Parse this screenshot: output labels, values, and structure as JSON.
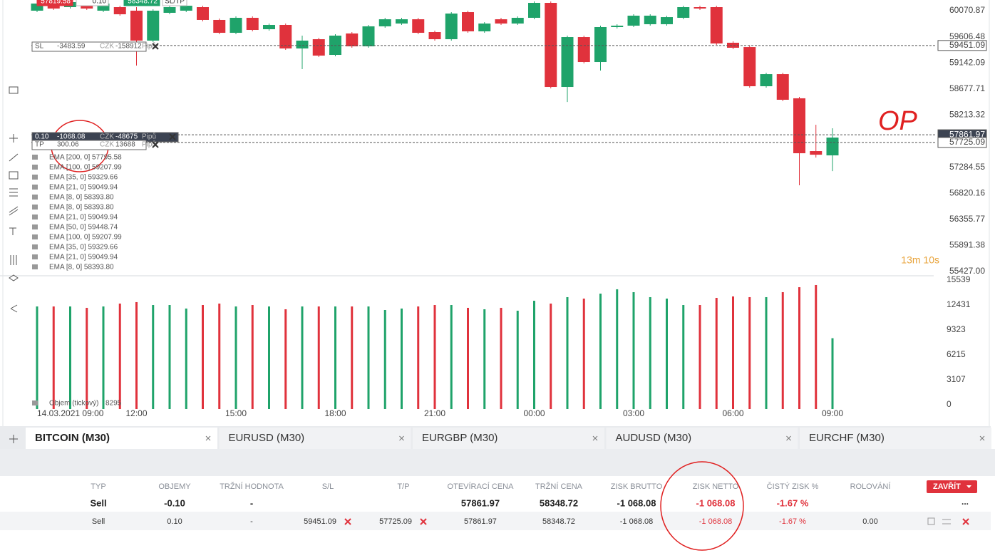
{
  "chart_data": {
    "type": "candlestick",
    "categories": [
      "14.03.2021 09:00",
      null,
      null,
      null,
      null,
      null,
      "12:00",
      null,
      null,
      null,
      null,
      null,
      "15:00",
      null,
      null,
      null,
      null,
      null,
      "18:00",
      null,
      null,
      null,
      null,
      null,
      "21:00",
      null,
      null,
      null,
      null,
      null,
      "00:00",
      null,
      null,
      null,
      null,
      null,
      "03:00",
      null,
      null,
      null,
      null,
      null,
      "06:00",
      null,
      null,
      null,
      null,
      null,
      "09:00"
    ],
    "open": [
      60071,
      60198,
      60134,
      60223,
      60071,
      60134,
      60071,
      59538,
      60033,
      60071,
      60134,
      59906,
      59677,
      59944,
      59741,
      59817,
      59398,
      59563,
      59284,
      59665,
      59436,
      59792,
      59842,
      59918,
      59690,
      59563,
      60045,
      59703,
      59918,
      59842,
      59944,
      60210,
      58713,
      59601,
      59157,
      59779,
      59804,
      59830,
      59830,
      59944,
      60134,
      60134,
      59500,
      59423,
      58726,
      58941,
      58511,
      57571,
      57495
    ],
    "high": [
      60223,
      60223,
      60248,
      60248,
      60223,
      60159,
      60134,
      60096,
      60159,
      60184,
      60159,
      59931,
      59969,
      59969,
      59842,
      59842,
      59627,
      59588,
      59652,
      59690,
      59817,
      59944,
      59944,
      59944,
      59715,
      60045,
      60071,
      59867,
      59944,
      59969,
      60235,
      60235,
      59626,
      59626,
      59804,
      59829,
      60007,
      60007,
      59981,
      60159,
      60159,
      60159,
      59525,
      59448,
      58966,
      58966,
      58536,
      58040,
      57977
    ],
    "low": [
      60045,
      60084,
      60109,
      60084,
      60045,
      59982,
      59094,
      59513,
      60007,
      60045,
      59880,
      59652,
      59652,
      59703,
      59716,
      59373,
      59030,
      59246,
      59259,
      59411,
      59411,
      59767,
      59817,
      59652,
      59538,
      59538,
      59678,
      59678,
      59817,
      59817,
      59919,
      58688,
      58446,
      59132,
      59005,
      59754,
      59779,
      59805,
      59805,
      59919,
      60084,
      59462,
      59386,
      58701,
      58701,
      58460,
      56962,
      57456,
      57215
    ],
    "close": [
      60198,
      60109,
      60223,
      60109,
      60198,
      60007,
      59538,
      60071,
      60134,
      60159,
      59906,
      59677,
      59944,
      59728,
      59817,
      59398,
      59538,
      59271,
      59627,
      59436,
      59792,
      59918,
      59918,
      59677,
      59563,
      60020,
      59703,
      59842,
      59842,
      59944,
      60210,
      58713,
      59601,
      59157,
      59779,
      59804,
      59982,
      59982,
      59956,
      60134,
      60109,
      59487,
      59411,
      58726,
      58941,
      58485,
      57533,
      57507,
      57812
    ],
    "up_color": "#1fa36a",
    "down_color": "#e0323c",
    "ylim": [
      55364,
      60261
    ],
    "yticks": [
      60070.87,
      59606.48,
      59142.09,
      58677.71,
      58213.32,
      57284.55,
      56820.16,
      56355.77,
      55891.38,
      {
        "value": 55427,
        "label": "55427.00"
      }
    ],
    "price_lines": [
      59451.09,
      57861.97,
      57725.09
    ],
    "volume": {
      "name": "Objem (tickový)",
      "values": [
        12250,
        12250,
        12250,
        12080,
        12250,
        12610,
        12790,
        12430,
        12430,
        11990,
        12430,
        12610,
        12250,
        12430,
        12250,
        11900,
        12250,
        12250,
        12250,
        12250,
        12250,
        11810,
        11990,
        12250,
        12430,
        12430,
        12080,
        11900,
        12080,
        11720,
        12960,
        12610,
        13410,
        13230,
        13850,
        14390,
        14030,
        13410,
        13230,
        12430,
        12430,
        13320,
        13500,
        13410,
        13410,
        14030,
        14650,
        14920,
        8295
      ],
      "ylim": [
        0,
        15539
      ],
      "yticks": [
        15539,
        12431,
        9323,
        6215,
        3107,
        0
      ]
    },
    "indicators": [
      "EMA [200, 0] 57795.58",
      "EMA [100, 0] 59207.99",
      "EMA [35, 0] 59329.66",
      "EMA [21, 0] 59049.94",
      "EMA [8, 0] 58393.80",
      "EMA [8, 0] 58393.80",
      "EMA [21, 0] 59049.94",
      "EMA [50, 0] 59448.74",
      "EMA [100, 0] 59207.99",
      "EMA [35, 0] 59329.66",
      "EMA [21, 0] 59049.94",
      "EMA [8, 0] 58393.80"
    ],
    "countdown": "13m 10s",
    "annotation": "OP"
  },
  "quote_bar": {
    "bid": "57819.58",
    "volume": "0.10",
    "ask": "58348.72",
    "sltp": "SL/TP"
  },
  "trade_labels": [
    {
      "tag": "SL",
      "profit": "-3483.59",
      "currency": "CZK",
      "pips": "-158912",
      "unit": "Pipů"
    },
    {
      "tag": "0.10",
      "profit": "-1068.08",
      "currency": "CZK",
      "pips": "-48675",
      "unit": "Pipů"
    },
    {
      "tag": "TP",
      "profit": "300.06",
      "currency": "CZK",
      "pips": "13688",
      "unit": "Pipů"
    }
  ],
  "tabs": [
    "BITCOIN (M30)",
    "EURUSD (M30)",
    "EURGBP (M30)",
    "AUDUSD (M30)",
    "EURCHF (M30)"
  ],
  "table": {
    "headers": [
      "TYP",
      "OBJEMY",
      "TRŽNÍ HODNOTA",
      "S/L",
      "T/P",
      "OTEVÍRACÍ CENA",
      "TRŽNÍ CENA",
      "ZISK BRUTTO",
      "ZISK NETTO",
      "ČISTÝ ZISK %",
      "ROLOVÁNÍ"
    ],
    "close_button": "ZAVŘÍT",
    "summary": [
      "Sell",
      "-0.10",
      "-",
      null,
      null,
      "57861.97",
      "58348.72",
      "-1 068.08",
      "-1 068.08",
      "-1.67 %",
      null
    ],
    "summary_menu": "...",
    "rows": [
      [
        "Sell",
        "0.10",
        "-",
        "59451.09",
        "57725.09",
        "57861.97",
        "58348.72",
        "-1 068.08",
        "-1 068.08",
        "-1.67 %",
        "0.00"
      ]
    ]
  }
}
